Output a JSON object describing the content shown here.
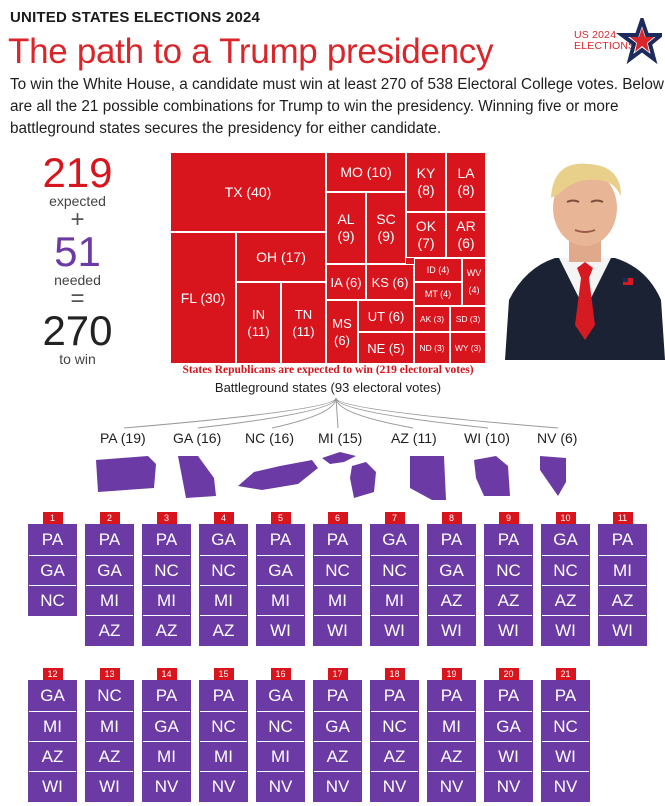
{
  "header": {
    "kicker": "UNITED STATES ELECTIONS 2024",
    "title": "The path to a Trump presidency",
    "intro": "To win the White House, a candidate must win at least 270 of 538 Electoral College votes. Below are all the 21 possible combinations for Trump to win the presidency. Winning five or more battleground states secures the presidency for either candidate.",
    "logo_line1": "US 2024",
    "logo_line2": "ELECTIONS"
  },
  "equation": {
    "expected_value": "219",
    "expected_label": "expected",
    "plus": "+",
    "needed_value": "51",
    "needed_label": "needed",
    "equals": "=",
    "win_value": "270",
    "win_label": "to win"
  },
  "treemap": {
    "caption": "States Republicans are expected to win (219 electoral votes)",
    "states": [
      {
        "label": "TX (40)",
        "votes": 40
      },
      {
        "label": "FL (30)",
        "votes": 30
      },
      {
        "label": "OH (17)",
        "votes": 17
      },
      {
        "label": "IN (11)",
        "votes": 11
      },
      {
        "label": "TN (11)",
        "votes": 11
      },
      {
        "label": "MO (10)",
        "votes": 10
      },
      {
        "label": "AL (9)",
        "votes": 9
      },
      {
        "label": "SC (9)",
        "votes": 9
      },
      {
        "label": "KY (8)",
        "votes": 8
      },
      {
        "label": "LA (8)",
        "votes": 8
      },
      {
        "label": "OK (7)",
        "votes": 7
      },
      {
        "label": "AR (6)",
        "votes": 6
      },
      {
        "label": "IA (6)",
        "votes": 6
      },
      {
        "label": "KS (6)",
        "votes": 6
      },
      {
        "label": "ID (4)",
        "votes": 4
      },
      {
        "label": "WV (4)",
        "votes": 4
      },
      {
        "label": "MT (4)",
        "votes": 4
      },
      {
        "label": "MS (6)",
        "votes": 6
      },
      {
        "label": "UT (6)",
        "votes": 6
      },
      {
        "label": "AK (3)",
        "votes": 3
      },
      {
        "label": "SD (3)",
        "votes": 3
      },
      {
        "label": "NE (5)",
        "votes": 5
      },
      {
        "label": "ND (3)",
        "votes": 3
      },
      {
        "label": "WY (3)",
        "votes": 3
      }
    ]
  },
  "battleground": {
    "caption": "Battleground states (93 electoral votes)",
    "states": [
      {
        "label": "PA (19)",
        "code": "PA",
        "votes": 19
      },
      {
        "label": "GA (16)",
        "code": "GA",
        "votes": 16
      },
      {
        "label": "NC (16)",
        "code": "NC",
        "votes": 16
      },
      {
        "label": "MI (15)",
        "code": "MI",
        "votes": 15
      },
      {
        "label": "AZ (11)",
        "code": "AZ",
        "votes": 11
      },
      {
        "label": "WI (10)",
        "code": "WI",
        "votes": 10
      },
      {
        "label": "NV (6)",
        "code": "NV",
        "votes": 6
      }
    ]
  },
  "combinations": [
    {
      "num": "1",
      "states": [
        "PA",
        "GA",
        "NC"
      ]
    },
    {
      "num": "2",
      "states": [
        "PA",
        "GA",
        "MI",
        "AZ"
      ]
    },
    {
      "num": "3",
      "states": [
        "PA",
        "NC",
        "MI",
        "AZ"
      ]
    },
    {
      "num": "4",
      "states": [
        "GA",
        "NC",
        "MI",
        "AZ"
      ]
    },
    {
      "num": "5",
      "states": [
        "PA",
        "GA",
        "MI",
        "WI"
      ]
    },
    {
      "num": "6",
      "states": [
        "PA",
        "NC",
        "MI",
        "WI"
      ]
    },
    {
      "num": "7",
      "states": [
        "GA",
        "NC",
        "MI",
        "WI"
      ]
    },
    {
      "num": "8",
      "states": [
        "PA",
        "GA",
        "AZ",
        "WI"
      ]
    },
    {
      "num": "9",
      "states": [
        "PA",
        "NC",
        "AZ",
        "WI"
      ]
    },
    {
      "num": "10",
      "states": [
        "GA",
        "NC",
        "AZ",
        "WI"
      ]
    },
    {
      "num": "11",
      "states": [
        "PA",
        "MI",
        "AZ",
        "WI"
      ]
    },
    {
      "num": "12",
      "states": [
        "GA",
        "MI",
        "AZ",
        "WI"
      ]
    },
    {
      "num": "13",
      "states": [
        "NC",
        "MI",
        "AZ",
        "WI"
      ]
    },
    {
      "num": "14",
      "states": [
        "PA",
        "GA",
        "MI",
        "NV"
      ]
    },
    {
      "num": "15",
      "states": [
        "PA",
        "NC",
        "MI",
        "NV"
      ]
    },
    {
      "num": "16",
      "states": [
        "GA",
        "NC",
        "MI",
        "NV"
      ]
    },
    {
      "num": "17",
      "states": [
        "PA",
        "GA",
        "AZ",
        "NV"
      ]
    },
    {
      "num": "18",
      "states": [
        "PA",
        "NC",
        "AZ",
        "NV"
      ]
    },
    {
      "num": "19",
      "states": [
        "PA",
        "MI",
        "AZ",
        "NV"
      ]
    },
    {
      "num": "20",
      "states": [
        "PA",
        "GA",
        "WI",
        "NV"
      ]
    },
    {
      "num": "21",
      "states": [
        "PA",
        "NC",
        "WI",
        "NV"
      ]
    }
  ],
  "colors": {
    "republican_red": "#d8141c",
    "title_red": "#d8262b",
    "battleground_purple": "#6b3aa5",
    "needed_purple": "#6b3aa5",
    "logo_navy": "#1d2a5c"
  },
  "icons": {
    "logo": "star-icon",
    "photo": "candidate-photo"
  }
}
